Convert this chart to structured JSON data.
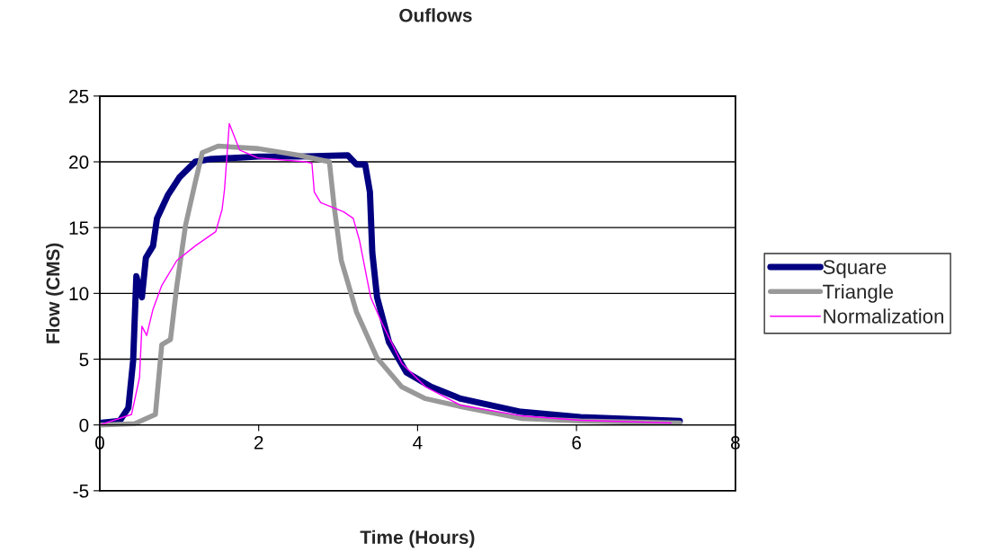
{
  "chart_data": {
    "type": "line",
    "title": "Ouflows",
    "xlabel": "Time (Hours)",
    "ylabel": "Flow (CMS)",
    "xlim": [
      0,
      8
    ],
    "xticks": [
      0,
      2,
      4,
      6,
      8
    ],
    "ylim": [
      -5,
      25
    ],
    "yticks": [
      -5,
      0,
      5,
      10,
      15,
      20,
      25
    ],
    "grid": "y",
    "legend": "right",
    "marker": "none",
    "line_style": "solid",
    "series": [
      {
        "name": "Square",
        "color": "#000080",
        "x": [
          0,
          0.25,
          0.36,
          0.42,
          0.46,
          0.53,
          0.58,
          0.67,
          0.72,
          0.86,
          1.0,
          1.2,
          1.38,
          2.0,
          2.5,
          3.12,
          3.23,
          3.34,
          3.4,
          3.43,
          3.49,
          3.64,
          3.86,
          4.17,
          4.54,
          5.3,
          6.05,
          7.3
        ],
        "values": [
          0.15,
          0.3,
          1.3,
          4.9,
          11.3,
          9.7,
          12.7,
          13.6,
          15.7,
          17.5,
          18.8,
          20,
          20.2,
          20.4,
          20.4,
          20.5,
          19.8,
          19.8,
          17.7,
          13.1,
          9.7,
          6.3,
          4.0,
          2.9,
          2.0,
          1.0,
          0.6,
          0.3
        ]
      },
      {
        "name": "Triangle",
        "color": "#999999",
        "x": [
          0,
          0.44,
          0.7,
          0.78,
          0.89,
          0.97,
          1.08,
          1.2,
          1.29,
          1.49,
          2.0,
          2.51,
          2.89,
          2.95,
          3.04,
          3.23,
          3.49,
          3.8,
          4.1,
          4.54,
          5.3,
          6.05,
          7.3
        ],
        "values": [
          0,
          0.1,
          0.8,
          6.1,
          6.5,
          10.6,
          15.2,
          18.4,
          20.7,
          21.2,
          21.0,
          20.5,
          20.0,
          16.6,
          12.5,
          8.6,
          5.1,
          2.9,
          2.0,
          1.4,
          0.5,
          0.3,
          0.15
        ]
      },
      {
        "name": "Normalization",
        "color": "#ff00ff",
        "x": [
          0,
          0.4,
          0.5,
          0.53,
          0.59,
          0.67,
          0.78,
          0.97,
          1.2,
          1.46,
          1.54,
          1.57,
          1.63,
          1.76,
          1.99,
          2.59,
          2.67,
          2.7,
          2.78,
          3.07,
          3.19,
          3.27,
          3.38,
          3.41,
          3.57,
          3.8,
          4.1,
          4.54,
          5.3,
          6.05,
          7.19
        ],
        "values": [
          0,
          0.8,
          3.6,
          7.5,
          6.8,
          8.8,
          10.6,
          12.5,
          13.6,
          14.7,
          16.4,
          17.9,
          22.9,
          20.9,
          20.3,
          20.0,
          19.9,
          17.7,
          16.9,
          16.2,
          15.7,
          14.0,
          10.6,
          9.7,
          7.5,
          4.7,
          2.9,
          1.5,
          0.7,
          0.35,
          0.15
        ]
      }
    ]
  }
}
